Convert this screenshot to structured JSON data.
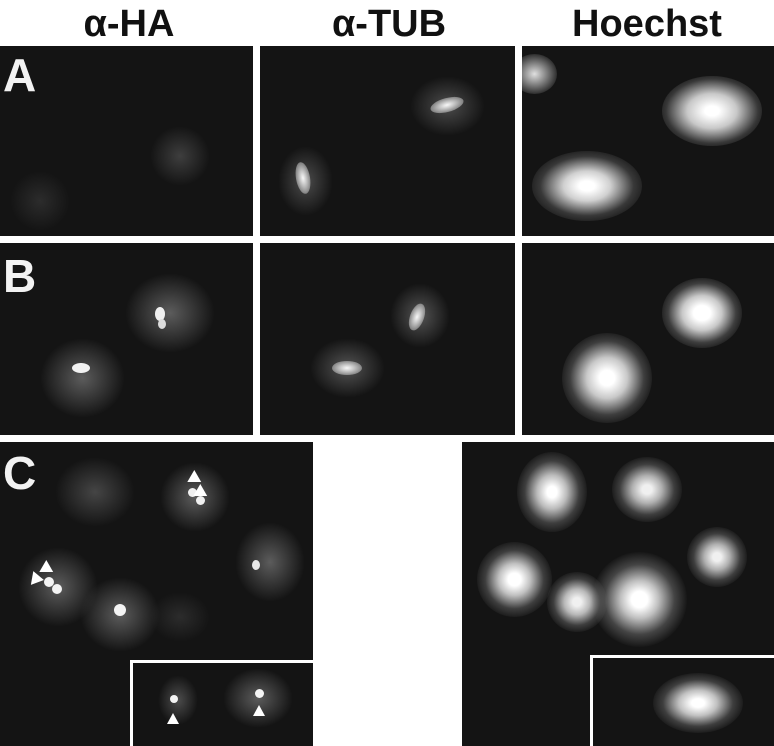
{
  "columns": {
    "ha": "α-HA",
    "tub": "α-TUB",
    "hoechst": "Hoechst"
  },
  "rows": {
    "a": "A",
    "b": "B",
    "c": "C"
  },
  "colors": {
    "background": "#ffffff",
    "panel": "#141414",
    "signal": "#f4f4f4"
  }
}
